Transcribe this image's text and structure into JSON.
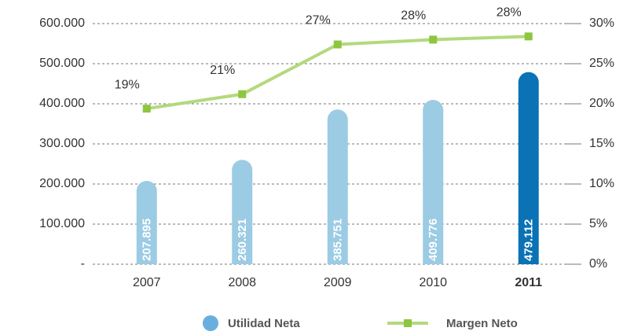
{
  "chart_data": {
    "type": "bar-line",
    "categories": [
      "2007",
      "2008",
      "2009",
      "2010",
      "2011"
    ],
    "series": [
      {
        "name": "Utilidad Neta",
        "type": "bar",
        "color": "#6aaedf",
        "colors": [
          "#9ccbe4",
          "#9ccbe4",
          "#9ccbe4",
          "#9ccbe4",
          "#0a72b5"
        ],
        "values": [
          207895,
          260321,
          385751,
          409776,
          479112
        ],
        "value_labels": [
          "207.895",
          "260.321",
          "385.751",
          "409.776",
          "479.112"
        ]
      },
      {
        "name": "Margen Neto",
        "type": "line",
        "axis": "y2",
        "color": "#b3d97c",
        "marker_color": "#8dc63f",
        "values": [
          19.4,
          21.2,
          27.4,
          28.0,
          28.4
        ],
        "value_labels": [
          "19%",
          "21%",
          "27%",
          "28%",
          "28%"
        ]
      }
    ],
    "ylim": [
      0,
      600000
    ],
    "yticks": [
      {
        "value": 0,
        "label": "-"
      },
      {
        "value": 100000,
        "label": "100.000"
      },
      {
        "value": 200000,
        "label": "200.000"
      },
      {
        "value": 300000,
        "label": "300.000"
      },
      {
        "value": 400000,
        "label": "400.000"
      },
      {
        "value": 500000,
        "label": "500.000"
      },
      {
        "value": 600000,
        "label": "600.000"
      }
    ],
    "y2lim": [
      0,
      30
    ],
    "y2ticks": [
      {
        "value": 0,
        "label": "0%"
      },
      {
        "value": 5,
        "label": "5%"
      },
      {
        "value": 10,
        "label": "10%"
      },
      {
        "value": 15,
        "label": "15%"
      },
      {
        "value": 20,
        "label": "20%"
      },
      {
        "value": 25,
        "label": "25%"
      },
      {
        "value": 30,
        "label": "30%"
      }
    ],
    "grid": true,
    "legend": "bottom"
  }
}
